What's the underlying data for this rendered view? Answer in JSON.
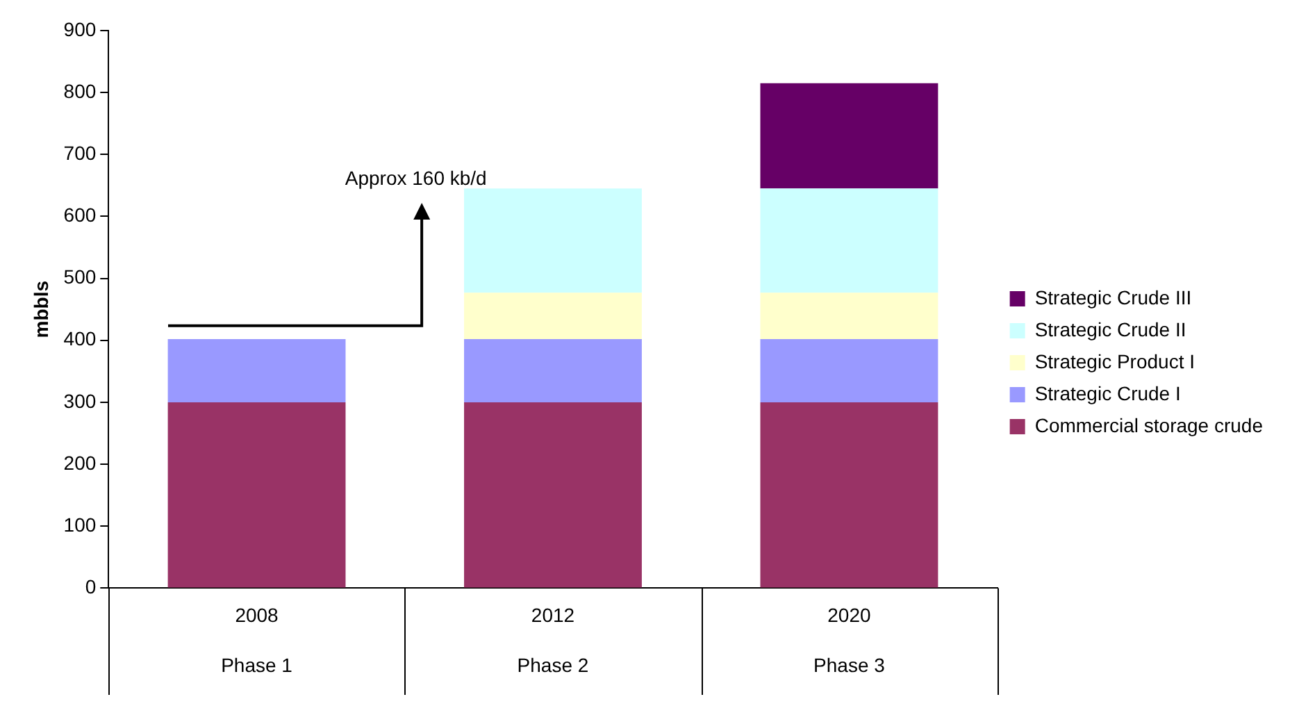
{
  "chart_data": {
    "type": "bar",
    "stacked": true,
    "ylabel": "mbbls",
    "categories": [
      "2008\nPhase 1",
      "2012\nPhase 2",
      "2020\nPhase 3"
    ],
    "series": [
      {
        "name": "Commercial storage crude",
        "color": "#993366",
        "values": [
          300,
          300,
          300
        ]
      },
      {
        "name": "Strategic Crude I",
        "color": "#9999ff",
        "values": [
          102,
          102,
          102
        ]
      },
      {
        "name": "Strategic Product I",
        "color": "#ffffcc",
        "values": [
          null,
          75,
          75
        ]
      },
      {
        "name": "Strategic Crude II",
        "color": "#ccffff",
        "values": [
          null,
          168,
          168
        ]
      },
      {
        "name": "Strategic Crude III",
        "color": "#660066",
        "values": [
          null,
          null,
          170
        ]
      }
    ],
    "ylim": [
      0,
      900
    ],
    "yticks": [
      0,
      100,
      200,
      300,
      400,
      500,
      600,
      700,
      800,
      900
    ],
    "legend": "right",
    "annotations": [
      "Approx 160 kb/d"
    ]
  }
}
